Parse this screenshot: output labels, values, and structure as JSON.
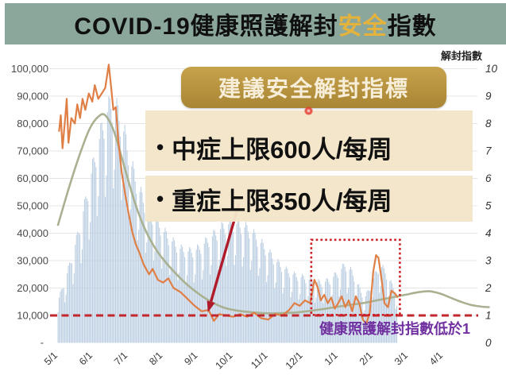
{
  "title": {
    "prefix": "COVID-19健康照護解封",
    "highlight": "安全",
    "suffix": "指數"
  },
  "overlay": {
    "header": "建議安全解封指標",
    "bullet_char": "•",
    "bullets": [
      "中症上限600人/每周",
      "重症上限350人/每周"
    ]
  },
  "annotation": {
    "below_line_note": "健康照護解封指數低於1"
  },
  "colors": {
    "banner_bg": "#8BA79C",
    "title_highlight": "#E5B33C",
    "gold_box_bg": "#B8923F",
    "beige_box_bg": "#F3E5C9",
    "bars": "#BCCFE2",
    "orange_line": "#E07F45",
    "green_line": "#A9B191",
    "dashed_line": "#C1272D",
    "dotted_box": "#D01F24",
    "arrow": "#B01B2C",
    "purple_note": "#7030A0",
    "gridline": "#E4E4E4",
    "axis_text": "#4A4A4A"
  },
  "chart_data": {
    "type": "combo: daily bars (left axis) + two lines (right axis)",
    "title": "COVID-19健康照護解封安全指數",
    "grid": "horizontal on",
    "legend": "none shown",
    "x_ticks": [
      "5/1",
      "6/1",
      "7/1",
      "8/1",
      "9/1",
      "10/1",
      "11/1",
      "12/1",
      "1/1",
      "2/1",
      "3/1",
      "4/1"
    ],
    "left_axis": {
      "range": [
        0,
        100000
      ],
      "tick_labels": [
        "100,000",
        "90,000",
        "80,000",
        "70,000",
        "60,000",
        "50,000",
        "40,000",
        "30,000",
        "20,000",
        "10,000"
      ],
      "zero_label": "-"
    },
    "right_axis": {
      "title": "解封指數",
      "range": [
        0,
        10
      ],
      "tick_labels": [
        "10",
        "9",
        "8",
        "7",
        "6",
        "5",
        "4",
        "3",
        "2",
        "1",
        "0"
      ]
    },
    "reference_line": {
      "axis": "right",
      "value": 1,
      "style": "red dashed",
      "note": "健康照護解封指數低於1"
    },
    "highlight_box": {
      "style": "red dotted rectangle",
      "x_month_from": 7.23,
      "x_month_to": 9.76,
      "value_from": 1.02,
      "value_to": 3.76
    },
    "arrow_annotation": {
      "from_month": 5.17,
      "from_value": 5.1,
      "to_month": 4.28,
      "to_value": 1.2,
      "meaning": "points to index touching 1 near 9/1"
    },
    "series": {
      "cases_bars": {
        "axis": "left",
        "unit": "persons/day (x10,000 per index unit)",
        "weekday_pattern": [
          0.7,
          0.95,
          1.0,
          0.98,
          0.93,
          0.88,
          0.62
        ],
        "weekly_points": [
          [
            0,
            1.6
          ],
          [
            0.25,
            2.6
          ],
          [
            0.5,
            3.8
          ],
          [
            0.75,
            5.2
          ],
          [
            1.0,
            6.8
          ],
          [
            1.25,
            8.2
          ],
          [
            1.5,
            9.2
          ],
          [
            1.7,
            8.9
          ],
          [
            1.9,
            8.0
          ],
          [
            2.1,
            6.8
          ],
          [
            2.3,
            5.9
          ],
          [
            2.5,
            5.3
          ],
          [
            2.75,
            4.8
          ],
          [
            3.0,
            4.3
          ],
          [
            3.25,
            3.9
          ],
          [
            3.5,
            3.6
          ],
          [
            3.75,
            3.5
          ],
          [
            4.0,
            3.6
          ],
          [
            4.25,
            3.9
          ],
          [
            4.5,
            4.2
          ],
          [
            4.75,
            4.5
          ],
          [
            5.0,
            4.6
          ],
          [
            5.25,
            4.5
          ],
          [
            5.5,
            4.3
          ],
          [
            5.75,
            3.9
          ],
          [
            6.0,
            3.5
          ],
          [
            6.25,
            3.1
          ],
          [
            6.5,
            2.8
          ],
          [
            6.75,
            2.6
          ],
          [
            7.0,
            2.5
          ],
          [
            7.25,
            2.4
          ],
          [
            7.5,
            2.3
          ],
          [
            7.75,
            2.4
          ],
          [
            8.0,
            2.7
          ],
          [
            8.2,
            3.0
          ],
          [
            8.4,
            2.7
          ],
          [
            8.6,
            2.1
          ],
          [
            8.75,
            1.7
          ],
          [
            8.9,
            2.1
          ],
          [
            9.05,
            2.6
          ],
          [
            9.2,
            3.0
          ],
          [
            9.35,
            2.7
          ],
          [
            9.5,
            2.3
          ],
          [
            9.68,
            1.9
          ]
        ]
      },
      "release_index_line": {
        "axis": "right",
        "points": [
          [
            0.03,
            7.7
          ],
          [
            0.08,
            8.3
          ],
          [
            0.13,
            7.1
          ],
          [
            0.2,
            8.1
          ],
          [
            0.25,
            8.9
          ],
          [
            0.3,
            7.3
          ],
          [
            0.38,
            8.2
          ],
          [
            0.48,
            8.0
          ],
          [
            0.55,
            8.7
          ],
          [
            0.63,
            8.2
          ],
          [
            0.7,
            8.9
          ],
          [
            0.78,
            8.5
          ],
          [
            0.88,
            9.1
          ],
          [
            0.98,
            8.8
          ],
          [
            1.05,
            9.4
          ],
          [
            1.15,
            8.9
          ],
          [
            1.25,
            9.1
          ],
          [
            1.35,
            9.3
          ],
          [
            1.45,
            10.15
          ],
          [
            1.52,
            9.3
          ],
          [
            1.58,
            8.5
          ],
          [
            1.65,
            8.6
          ],
          [
            1.72,
            7.4
          ],
          [
            1.82,
            6.2
          ],
          [
            1.92,
            5.4
          ],
          [
            2.02,
            4.7
          ],
          [
            2.12,
            4.05
          ],
          [
            2.22,
            3.6
          ],
          [
            2.32,
            3.3
          ],
          [
            2.45,
            2.85
          ],
          [
            2.6,
            2.5
          ],
          [
            2.7,
            2.7
          ],
          [
            2.85,
            2.3
          ],
          [
            3.0,
            2.2
          ],
          [
            3.15,
            2.35
          ],
          [
            3.3,
            2.0
          ],
          [
            3.5,
            1.85
          ],
          [
            3.7,
            1.6
          ],
          [
            3.9,
            1.35
          ],
          [
            4.1,
            1.15
          ],
          [
            4.3,
            1.2
          ],
          [
            4.45,
            0.8
          ],
          [
            4.6,
            1.05
          ],
          [
            4.8,
            1.0
          ],
          [
            5.0,
            0.95
          ],
          [
            5.2,
            1.05
          ],
          [
            5.4,
            0.95
          ],
          [
            5.6,
            1.1
          ],
          [
            5.8,
            0.9
          ],
          [
            6.0,
            0.85
          ],
          [
            6.2,
            1.05
          ],
          [
            6.4,
            1.0
          ],
          [
            6.6,
            1.2
          ],
          [
            6.75,
            1.45
          ],
          [
            6.9,
            1.35
          ],
          [
            7.05,
            1.55
          ],
          [
            7.2,
            1.45
          ],
          [
            7.32,
            2.3
          ],
          [
            7.42,
            2.0
          ],
          [
            7.5,
            1.55
          ],
          [
            7.6,
            1.75
          ],
          [
            7.7,
            1.45
          ],
          [
            7.8,
            1.65
          ],
          [
            7.9,
            1.25
          ],
          [
            8.0,
            1.45
          ],
          [
            8.1,
            1.7
          ],
          [
            8.2,
            1.3
          ],
          [
            8.3,
            1.55
          ],
          [
            8.4,
            1.15
          ],
          [
            8.5,
            1.7
          ],
          [
            8.6,
            1.45
          ],
          [
            8.7,
            0.85
          ],
          [
            8.8,
            0.7
          ],
          [
            8.9,
            1.1
          ],
          [
            9.0,
            2.6
          ],
          [
            9.08,
            3.2
          ],
          [
            9.15,
            3.1
          ],
          [
            9.25,
            2.2
          ],
          [
            9.32,
            1.45
          ],
          [
            9.42,
            1.3
          ],
          [
            9.52,
            1.9
          ],
          [
            9.62,
            1.8
          ],
          [
            9.7,
            1.65
          ]
        ]
      },
      "release_index_smoothed": {
        "axis": "right",
        "points": [
          [
            0,
            4.3
          ],
          [
            0.3,
            5.6
          ],
          [
            0.6,
            6.8
          ],
          [
            0.9,
            7.8
          ],
          [
            1.15,
            8.25
          ],
          [
            1.35,
            8.3
          ],
          [
            1.6,
            7.7
          ],
          [
            1.9,
            6.4
          ],
          [
            2.2,
            5.1
          ],
          [
            2.5,
            4.1
          ],
          [
            2.8,
            3.4
          ],
          [
            3.1,
            2.9
          ],
          [
            3.5,
            2.35
          ],
          [
            3.9,
            1.9
          ],
          [
            4.3,
            1.55
          ],
          [
            4.7,
            1.3
          ],
          [
            5.1,
            1.18
          ],
          [
            5.5,
            1.12
          ],
          [
            5.9,
            1.08
          ],
          [
            6.3,
            1.08
          ],
          [
            6.7,
            1.1
          ],
          [
            7.1,
            1.15
          ],
          [
            7.5,
            1.22
          ],
          [
            7.9,
            1.3
          ],
          [
            8.3,
            1.38
          ],
          [
            8.7,
            1.45
          ],
          [
            9.1,
            1.55
          ],
          [
            9.5,
            1.65
          ],
          [
            9.9,
            1.75
          ],
          [
            10.3,
            1.85
          ],
          [
            10.6,
            1.88
          ],
          [
            10.9,
            1.8
          ],
          [
            11.2,
            1.65
          ],
          [
            11.5,
            1.5
          ],
          [
            11.8,
            1.38
          ],
          [
            12.1,
            1.32
          ],
          [
            12.3,
            1.3
          ]
        ]
      }
    }
  }
}
